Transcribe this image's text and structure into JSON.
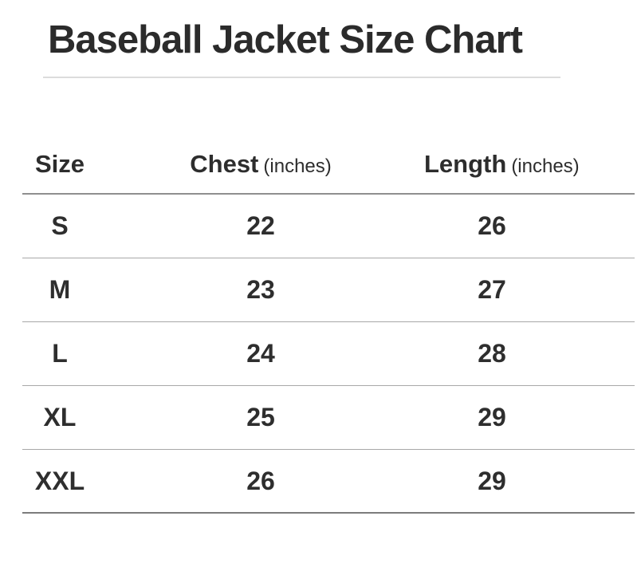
{
  "page": {
    "title": "Baseball Jacket Size Chart"
  },
  "table": {
    "header": {
      "size_label": "Size",
      "chest_label": "Chest",
      "chest_unit": "(inches)",
      "length_label": "Length",
      "length_unit": "(inches)"
    }
  },
  "chart_data": {
    "type": "table",
    "title": "Baseball Jacket Size Chart",
    "columns": [
      "Size",
      "Chest (inches)",
      "Length (inches)"
    ],
    "rows": [
      [
        "S",
        22,
        26
      ],
      [
        "M",
        23,
        27
      ],
      [
        "L",
        24,
        28
      ],
      [
        "XL",
        25,
        29
      ],
      [
        "XXL",
        26,
        29
      ]
    ]
  },
  "colors": {
    "text": "#2d2d2d",
    "title_rule": "#dcdcdc",
    "header_rule": "#8f8f8f",
    "row_rule": "#a8a8a8",
    "bottom_rule": "#7c7c7c",
    "background": "#ffffff"
  }
}
